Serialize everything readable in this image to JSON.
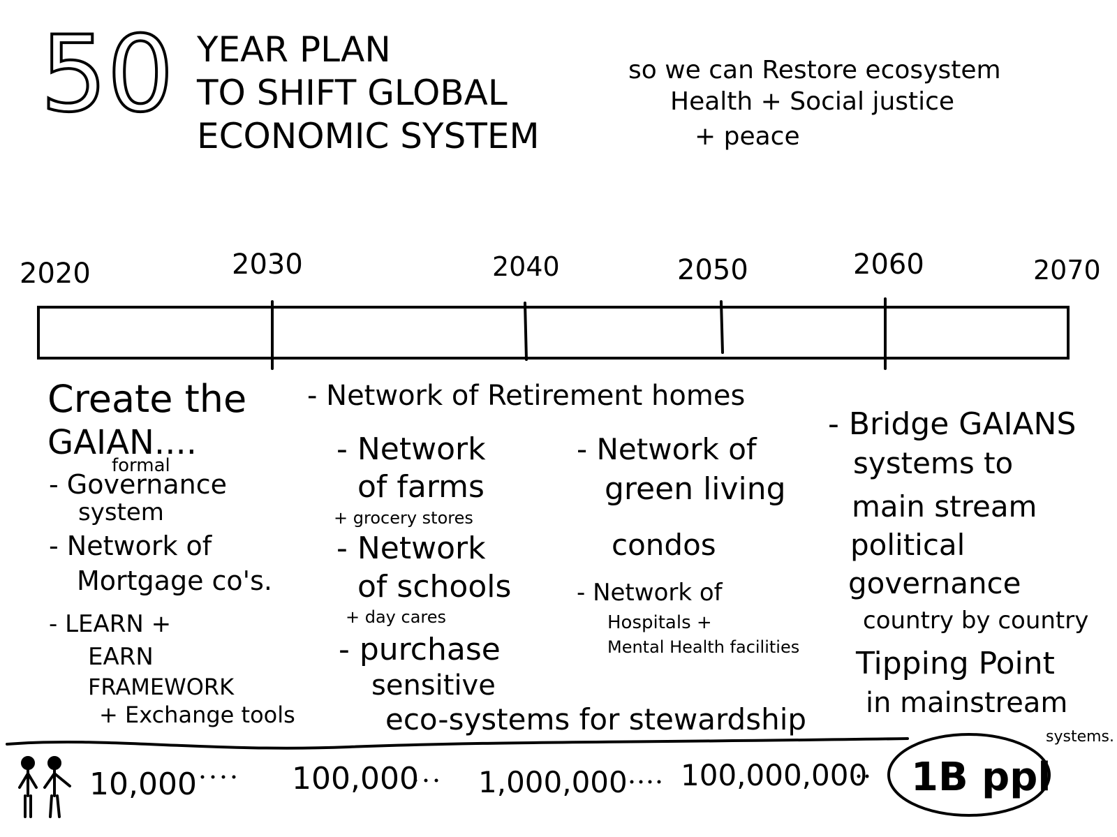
{
  "header": {
    "number": "50",
    "title_lines": [
      "YEAR PLAN",
      "TO SHIFT GLOBAL",
      "ECONOMIC SYSTEM"
    ],
    "goal_lines": [
      "so we can Restore ecosystem",
      "Health + Social justice",
      "+ peace"
    ]
  },
  "timeline": {
    "years": [
      "2020",
      "2030",
      "2040",
      "2050",
      "2060",
      "2070"
    ]
  },
  "columns": [
    {
      "lines": [
        "Create the",
        "GAIAN....",
        "formal",
        "- Governance",
        "system",
        "- Network of",
        "Mortgage co's.",
        "- LEARN +",
        "EARN",
        "FRAMEWORK",
        "+ Exchange tools"
      ]
    },
    {
      "lines": [
        "- Network of Retirement homes",
        "- Network",
        "of farms",
        "+ grocery stores",
        "- Network",
        "of schools",
        "+ day cares",
        "- purchase",
        "sensitive",
        "eco-systems for stewardship"
      ]
    },
    {
      "lines": [
        "- Network of",
        "green living",
        "condos",
        "- Network of",
        "Hospitals +",
        "Mental Health facilities"
      ]
    },
    {
      "lines": [
        "- Bridge GAIANS",
        "systems to",
        "main stream",
        "political",
        "governance",
        "country by country",
        "Tipping Point",
        "in mainstream",
        "systems."
      ]
    }
  ],
  "population": [
    "10,000",
    "100,000",
    "1,000,000",
    "100,000,000",
    "1B ppl"
  ]
}
